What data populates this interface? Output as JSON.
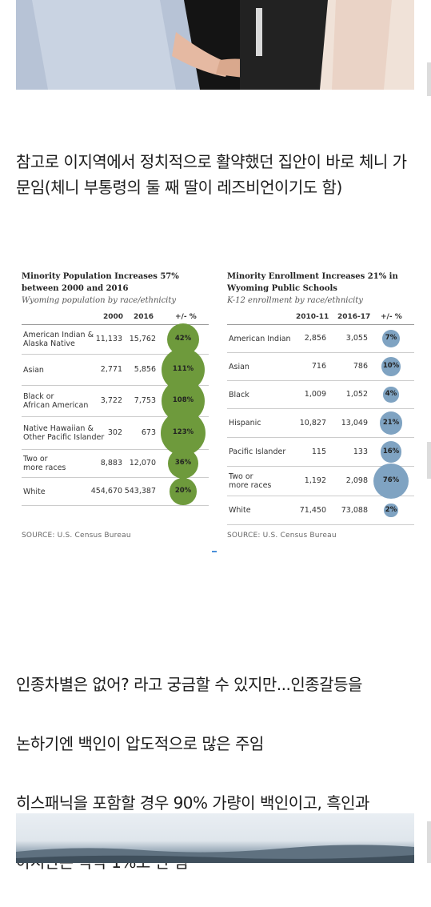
{
  "paragraph_1": "참고로 이지역에서 정치적으로 활약했던 집안이 바로 체니 가문임(체니 부통령의 둘 째 딸이 레즈비언이기도 함)",
  "paragraph_2_lines": [
    "인종차별은 없어? 라고 궁금할 수 있지만...인종갈등을",
    "논하기엔 백인이 압도적으로 많은 주임",
    "히스패닉을 포함할 경우 90% 가량이 백인이고, 흑인과",
    "아시안은 각각 1%도 안 됨"
  ],
  "left_table": {
    "title_line1": "Minority Population Increases 57%",
    "title_line2": "between 2000 and 2016",
    "subtitle": "Wyoming population by race/ethnicity",
    "headers": [
      "2000",
      "2016",
      "+/- %"
    ],
    "rows": [
      {
        "label": [
          "American Indian &",
          "Alaska Native"
        ],
        "v1": "11,133",
        "v2": "15,762",
        "pct": "42%",
        "pct_value": 42
      },
      {
        "label": [
          "Asian"
        ],
        "v1": "2,771",
        "v2": "5,856",
        "pct": "111%",
        "pct_value": 111
      },
      {
        "label": [
          "Black or",
          "African American"
        ],
        "v1": "3,722",
        "v2": "7,753",
        "pct": "108%",
        "pct_value": 108
      },
      {
        "label": [
          "Native Hawaiian &",
          "Other Pacific Islander"
        ],
        "v1": "302",
        "v2": "673",
        "pct": "123%",
        "pct_value": 123
      },
      {
        "label": [
          "Two or",
          "more races"
        ],
        "v1": "8,883",
        "v2": "12,070",
        "pct": "36%",
        "pct_value": 36
      },
      {
        "label": [
          "White"
        ],
        "v1": "454,670",
        "v2": "543,387",
        "pct": "20%",
        "pct_value": 20
      }
    ],
    "bubble_color": "#6e9a3c",
    "source": "SOURCE: U.S. Census Bureau"
  },
  "right_table": {
    "title_line1": "Minority Enrollment Increases 21% in",
    "title_line2": "Wyoming Public Schools",
    "subtitle": "K-12 enrollment by race/ethnicity",
    "headers": [
      "2010-11",
      "2016-17",
      "+/- %"
    ],
    "rows": [
      {
        "label": [
          "American Indian"
        ],
        "v1": "2,856",
        "v2": "3,055",
        "pct": "7%",
        "pct_value": 7
      },
      {
        "label": [
          "Asian"
        ],
        "v1": "716",
        "v2": "786",
        "pct": "10%",
        "pct_value": 10
      },
      {
        "label": [
          "Black"
        ],
        "v1": "1,009",
        "v2": "1,052",
        "pct": "4%",
        "pct_value": 4
      },
      {
        "label": [
          "Hispanic"
        ],
        "v1": "10,827",
        "v2": "13,049",
        "pct": "21%",
        "pct_value": 21
      },
      {
        "label": [
          "Pacific Islander"
        ],
        "v1": "115",
        "v2": "133",
        "pct": "16%",
        "pct_value": 16
      },
      {
        "label": [
          "Two or",
          "more races"
        ],
        "v1": "1,192",
        "v2": "2,098",
        "pct": "76%",
        "pct_value": 76
      },
      {
        "label": [
          "White"
        ],
        "v1": "71,450",
        "v2": "73,088",
        "pct": "2%",
        "pct_value": 2
      }
    ],
    "bubble_color": "#7fa3c2",
    "source": "SOURCE: U.S. Census Bureau"
  },
  "colors": {
    "text": "#1b1b1b",
    "green_bubble": "#6e9a3c",
    "blue_bubble": "#7fa3c2",
    "pager": "#4a90d9"
  }
}
